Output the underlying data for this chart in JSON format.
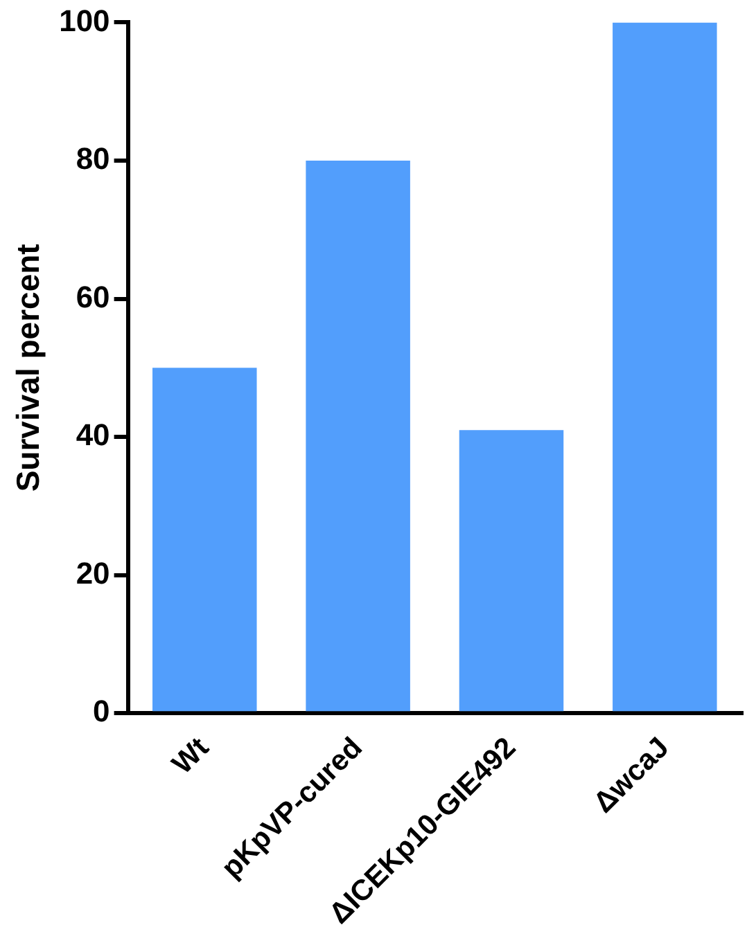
{
  "chart_data": {
    "type": "bar",
    "ylabel": "Survival percent",
    "categories": [
      "Wt",
      "pKpVP-cured",
      "ΔICEKp10-GIE492",
      "ΔwcaJ"
    ],
    "values": [
      50,
      80,
      41,
      100
    ],
    "color": "#529efc",
    "ylim": [
      0,
      100
    ],
    "yticks": [
      0,
      20,
      40,
      60,
      80,
      100
    ],
    "grid": false,
    "legend": false
  }
}
